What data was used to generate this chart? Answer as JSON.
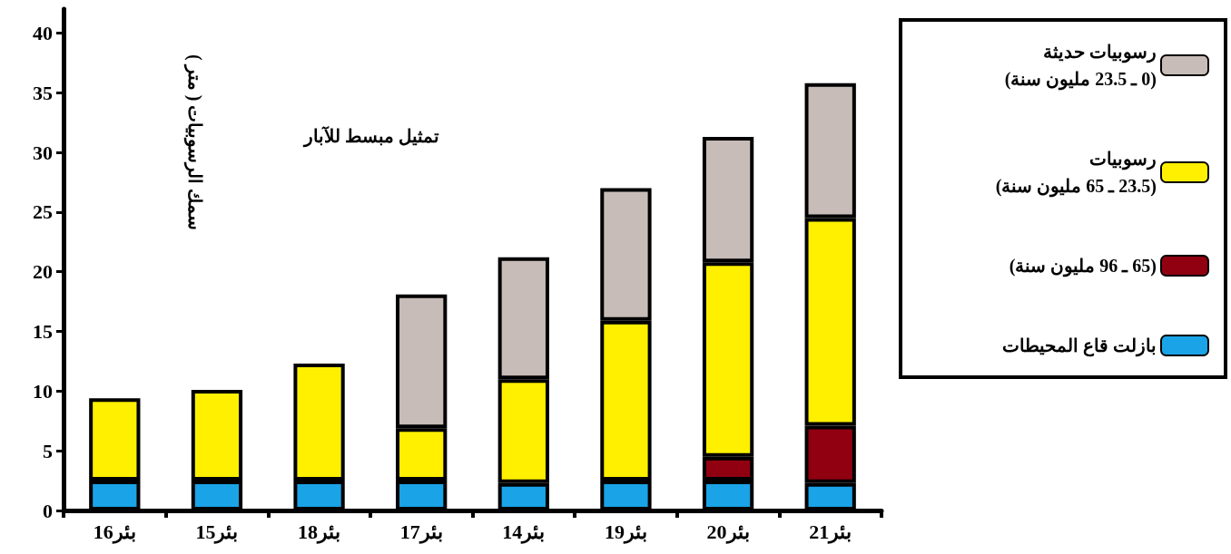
{
  "chart_data": {
    "type": "bar",
    "stacked": true,
    "title": "تمثيل مبسط للآبار",
    "ylabel": "سمك الرسوبيات ( متر )",
    "categories": [
      "بئر16",
      "بئر15",
      "بئر18",
      "بئر17",
      "بئر14",
      "بئر19",
      "بئر20",
      "بئر21"
    ],
    "series": [
      {
        "name": "بازلت قاع المحيطات",
        "color": "#1aa3e6",
        "values": [
          2.5,
          2.5,
          2.5,
          2.5,
          2.3,
          2.5,
          2.5,
          2.3
        ]
      },
      {
        "name": "(65 ـ 96 مليون سنة)",
        "color": "#900010",
        "values": [
          null,
          null,
          null,
          null,
          null,
          null,
          2,
          4.8
        ]
      },
      {
        "name": "رسوبيات (23.5 ـ 65 مليون سنة)",
        "color": "#fff000",
        "values": [
          6.9,
          7.6,
          9.8,
          4.4,
          8.7,
          13.4,
          16.3,
          17.4
        ]
      },
      {
        "name": "رسوبيات حديثة (0 ـ 23.5 مليون سنة)",
        "color": "#c8bcb8",
        "values": [
          null,
          null,
          null,
          11.2,
          10.2,
          11.1,
          10.5,
          11.3
        ]
      }
    ],
    "ylim": [
      0,
      42
    ],
    "yticks": [
      0,
      5,
      10,
      15,
      20,
      25,
      30,
      35,
      40
    ],
    "grid": false,
    "legend": "right"
  }
}
